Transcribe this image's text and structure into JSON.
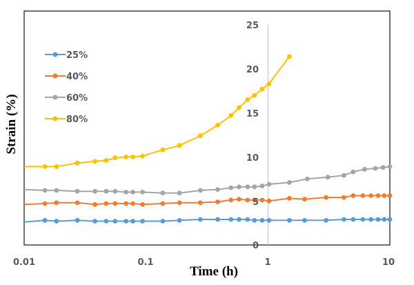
{
  "chart_data": {
    "type": "line",
    "title": "",
    "xlabel": "Time (h)",
    "ylabel": "Strain (%)",
    "xscale": "log",
    "xlim": [
      0.01,
      10
    ],
    "ylim": [
      0,
      25
    ],
    "x_ticks": [
      "0.01",
      "0.1",
      "1",
      "10"
    ],
    "x_tick_values": [
      0.01,
      0.1,
      1,
      10
    ],
    "y_ticks": [
      "0",
      "5",
      "10",
      "15",
      "20",
      "25"
    ],
    "y_tick_values": [
      0,
      5,
      10,
      15,
      20,
      25
    ],
    "grid": "vertical line at x=1 (y-axis crosses at 1)",
    "legend_position": "top-left",
    "series": [
      {
        "name": "25%",
        "color": "#5B9BD5",
        "x": [
          0.01,
          0.0148,
          0.0184,
          0.0273,
          0.0381,
          0.0471,
          0.0557,
          0.0685,
          0.078,
          0.0936,
          0.137,
          0.188,
          0.279,
          0.387,
          0.497,
          0.58,
          0.68,
          0.775,
          0.896,
          1.02,
          1.5,
          2.0,
          3.0,
          4.2,
          5.0,
          6.0,
          7.0,
          8.0,
          9.0,
          10.0
        ],
        "y": [
          2.6,
          2.8,
          2.7,
          2.8,
          2.7,
          2.7,
          2.7,
          2.7,
          2.7,
          2.7,
          2.7,
          2.8,
          2.9,
          2.9,
          2.9,
          2.9,
          2.9,
          2.8,
          2.8,
          2.8,
          2.8,
          2.8,
          2.8,
          2.9,
          2.9,
          2.9,
          2.9,
          2.9,
          2.9,
          2.9
        ]
      },
      {
        "name": "40%",
        "color": "#ED7D31",
        "x": [
          0.01,
          0.0148,
          0.0184,
          0.0273,
          0.0381,
          0.0471,
          0.0557,
          0.0685,
          0.078,
          0.0936,
          0.137,
          0.188,
          0.279,
          0.387,
          0.497,
          0.58,
          0.68,
          0.775,
          0.896,
          1.02,
          1.5,
          2.0,
          3.0,
          4.2,
          5.0,
          6.0,
          7.0,
          8.0,
          9.0,
          10.0
        ],
        "y": [
          4.6,
          4.7,
          4.8,
          4.8,
          4.6,
          4.7,
          4.7,
          4.7,
          4.7,
          4.6,
          4.7,
          4.8,
          4.8,
          4.9,
          5.1,
          5.2,
          5.1,
          5.1,
          5.1,
          5.0,
          5.3,
          5.2,
          5.4,
          5.4,
          5.6,
          5.6,
          5.6,
          5.6,
          5.6,
          5.6
        ]
      },
      {
        "name": "60%",
        "color": "#A5A5A5",
        "x": [
          0.01,
          0.0148,
          0.0184,
          0.0273,
          0.0381,
          0.0471,
          0.0557,
          0.0685,
          0.078,
          0.0936,
          0.137,
          0.188,
          0.279,
          0.387,
          0.497,
          0.58,
          0.68,
          0.775,
          0.896,
          1.02,
          1.5,
          2.1,
          3.1,
          4.2,
          5.0,
          6.2,
          7.6,
          8.8,
          10.0
        ],
        "y": [
          6.3,
          6.2,
          6.2,
          6.1,
          6.1,
          6.1,
          6.1,
          6.0,
          6.0,
          6.0,
          5.9,
          5.9,
          6.2,
          6.3,
          6.5,
          6.6,
          6.6,
          6.6,
          6.7,
          6.9,
          7.1,
          7.5,
          7.7,
          7.9,
          8.3,
          8.6,
          8.7,
          8.8,
          8.9
        ]
      },
      {
        "name": "80%",
        "color": "#FFC000",
        "x": [
          0.01,
          0.0148,
          0.0184,
          0.0273,
          0.0381,
          0.0471,
          0.0557,
          0.0685,
          0.078,
          0.0936,
          0.137,
          0.188,
          0.279,
          0.387,
          0.497,
          0.58,
          0.68,
          0.775,
          0.896,
          1.02,
          1.5
        ],
        "y": [
          8.9,
          8.9,
          8.9,
          9.3,
          9.5,
          9.6,
          9.9,
          10.0,
          10.0,
          10.1,
          10.8,
          11.3,
          12.4,
          13.6,
          14.7,
          15.6,
          16.5,
          17.0,
          17.7,
          18.3,
          21.4
        ]
      }
    ]
  }
}
